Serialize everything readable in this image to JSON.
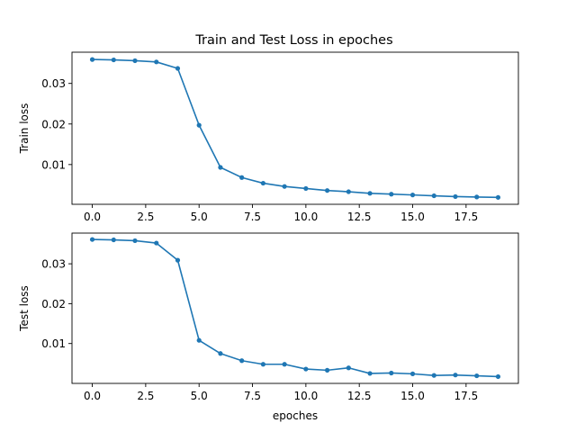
{
  "figure": {
    "title": "Train and Test Loss in epoches",
    "line_color": "#1f77b4"
  },
  "chart_data": [
    {
      "type": "line",
      "title": "Train and Test Loss in epoches",
      "xlabel": "",
      "ylabel": "Train loss",
      "xlim": [
        -0.95,
        19.95
      ],
      "ylim": [
        0.0002,
        0.0377
      ],
      "xticks": [
        0.0,
        2.5,
        5.0,
        7.5,
        10.0,
        12.5,
        15.0,
        17.5
      ],
      "xtick_labels": [
        "0.0",
        "2.5",
        "5.0",
        "7.5",
        "10.0",
        "12.5",
        "15.0",
        "17.5"
      ],
      "yticks": [
        0.01,
        0.02,
        0.03
      ],
      "ytick_labels": [
        "0.01",
        "0.02",
        "0.03"
      ],
      "grid": false,
      "marker": "dot",
      "x": [
        0,
        1,
        2,
        3,
        4,
        5,
        6,
        7,
        8,
        9,
        10,
        11,
        12,
        13,
        14,
        15,
        16,
        17,
        18,
        19
      ],
      "y": [
        0.0359,
        0.0358,
        0.0356,
        0.0353,
        0.0337,
        0.0197,
        0.0093,
        0.0068,
        0.0054,
        0.0046,
        0.0041,
        0.0036,
        0.0033,
        0.0029,
        0.0027,
        0.0025,
        0.0023,
        0.0021,
        0.002,
        0.0019
      ]
    },
    {
      "type": "line",
      "title": "",
      "xlabel": "epoches",
      "ylabel": "Test loss",
      "xlim": [
        -0.95,
        19.95
      ],
      "ylim": [
        0.0,
        0.0377
      ],
      "xticks": [
        0.0,
        2.5,
        5.0,
        7.5,
        10.0,
        12.5,
        15.0,
        17.5
      ],
      "xtick_labels": [
        "0.0",
        "2.5",
        "5.0",
        "7.5",
        "10.0",
        "12.5",
        "15.0",
        "17.5"
      ],
      "yticks": [
        0.01,
        0.02,
        0.03
      ],
      "ytick_labels": [
        "0.01",
        "0.02",
        "0.03"
      ],
      "grid": false,
      "marker": "dot",
      "x": [
        0,
        1,
        2,
        3,
        4,
        5,
        6,
        7,
        8,
        9,
        10,
        11,
        12,
        13,
        14,
        15,
        16,
        17,
        18,
        19
      ],
      "y": [
        0.0361,
        0.036,
        0.0358,
        0.0352,
        0.0309,
        0.0108,
        0.0075,
        0.0057,
        0.0048,
        0.0048,
        0.0036,
        0.0033,
        0.0039,
        0.0025,
        0.0026,
        0.0024,
        0.002,
        0.0021,
        0.0019,
        0.0017
      ]
    }
  ]
}
